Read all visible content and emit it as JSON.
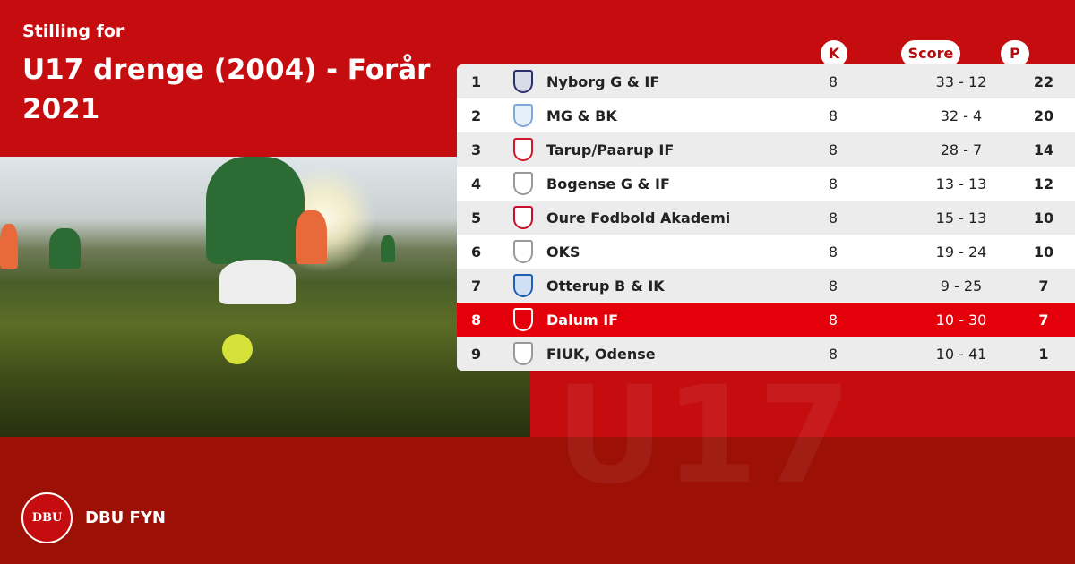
{
  "header": {
    "subtitle": "Stilling for",
    "title": "U17 drenge (2004) - Forår 2021"
  },
  "columns": {
    "k": "K",
    "score": "Score",
    "p": "P"
  },
  "colors": {
    "top": "#c50d10",
    "bottom": "#9c1006",
    "highlight": "#e3000b"
  },
  "rows": [
    {
      "pos": "1",
      "team": "Nyborg G & IF",
      "k": "8",
      "score": "33 - 12",
      "p": "22",
      "logo": "nyborg-crest-icon"
    },
    {
      "pos": "2",
      "team": "MG & BK",
      "k": "8",
      "score": "32 - 4",
      "p": "20",
      "logo": "mgbk-crest-icon"
    },
    {
      "pos": "3",
      "team": "Tarup/Paarup IF",
      "k": "8",
      "score": "28 - 7",
      "p": "14",
      "logo": "tpi-crest-icon"
    },
    {
      "pos": "4",
      "team": "Bogense G & IF",
      "k": "8",
      "score": "13 - 13",
      "p": "12",
      "logo": "placeholder-shield-icon"
    },
    {
      "pos": "5",
      "team": "Oure Fodbold Akademi",
      "k": "8",
      "score": "15 - 13",
      "p": "10",
      "logo": "oure-logo-icon"
    },
    {
      "pos": "6",
      "team": "OKS",
      "k": "8",
      "score": "19 - 24",
      "p": "10",
      "logo": "placeholder-shield-icon"
    },
    {
      "pos": "7",
      "team": "Otterup B & IK",
      "k": "8",
      "score": "9 - 25",
      "p": "7",
      "logo": "otterup-crest-icon"
    },
    {
      "pos": "8",
      "team": "Dalum IF",
      "k": "8",
      "score": "10 - 30",
      "p": "7",
      "logo": "dalum-crest-icon",
      "highlighted": true
    },
    {
      "pos": "9",
      "team": "FIUK, Odense",
      "k": "8",
      "score": "10 - 41",
      "p": "1",
      "logo": "placeholder-shield-icon"
    }
  ],
  "footer": {
    "logo_text": "DBU",
    "org": "DBU FYN"
  }
}
